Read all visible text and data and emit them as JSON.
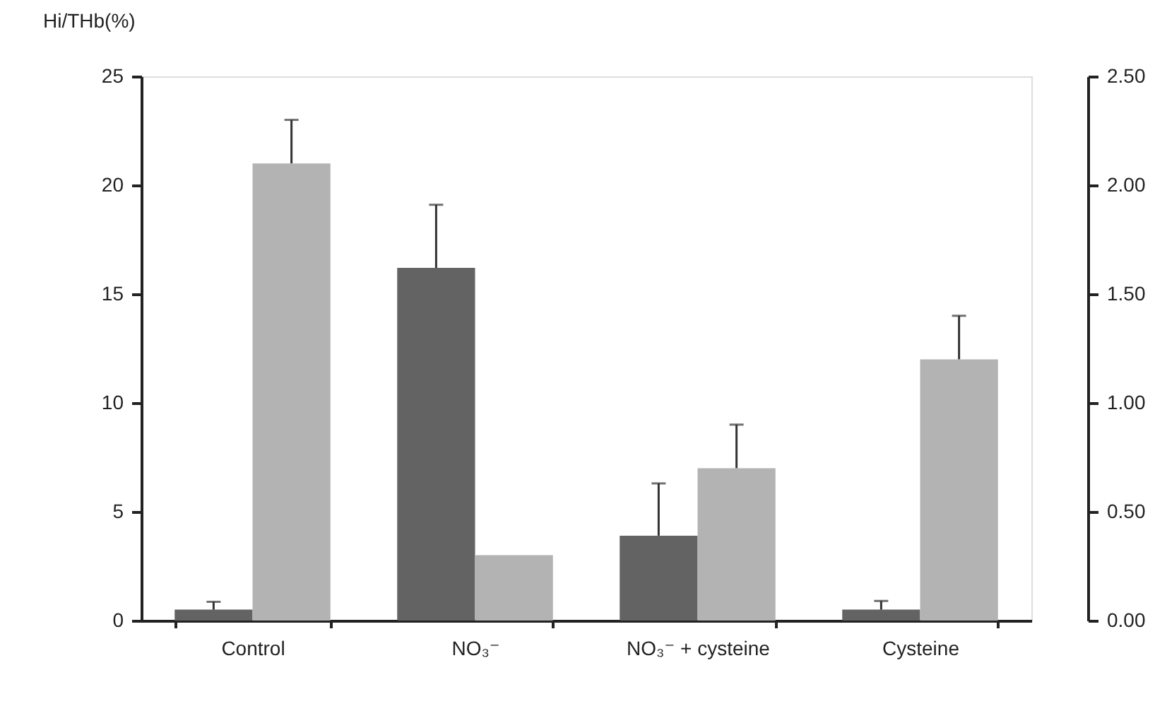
{
  "chart_data": {
    "type": "bar",
    "ylabel": "Hi/THb(%)",
    "categories": [
      "Control",
      "NO₃⁻",
      "NO₃⁻ + cysteine",
      "Cysteine"
    ],
    "series": [
      {
        "color": "#636363",
        "values": [
          0.5,
          16.2,
          3.9,
          0.5
        ],
        "errors": [
          [
            0.5,
            0.86
          ],
          [
            16.2,
            19.1
          ],
          [
            3.9,
            6.3
          ],
          [
            0.5,
            0.9
          ]
        ]
      },
      {
        "color": "#b3b3b3",
        "axis": "y2",
        "values": [
          2.1,
          0.3,
          0.7,
          1.2
        ],
        "errors": [
          [
            2.1,
            2.3
          ],
          null,
          [
            0.7,
            0.9
          ],
          [
            1.2,
            1.4
          ]
        ]
      }
    ],
    "ylim": [
      0,
      25
    ],
    "yticks": [
      0,
      5,
      10,
      15,
      20,
      25
    ],
    "y2lim": [
      0,
      2.5
    ],
    "y2ticks": [
      {
        "value": 0,
        "label": "0.00"
      },
      {
        "value": 0.5,
        "label": "0.50"
      },
      {
        "value": 1,
        "label": "1.00"
      },
      {
        "value": 1.5,
        "label": "1.50"
      },
      {
        "value": 2,
        "label": "2.00"
      },
      {
        "value": 2.5,
        "label": "2.50"
      }
    ],
    "grid": false,
    "legend": false
  }
}
